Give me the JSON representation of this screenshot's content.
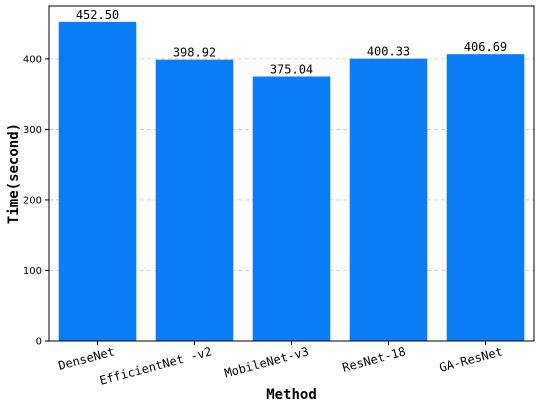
{
  "chart_data": {
    "type": "bar",
    "title": "",
    "xlabel": "Method",
    "ylabel": "Time(second)",
    "categories": [
      "DenseNet",
      "EfficientNet -v2",
      "MobileNet-v3",
      "ResNet-18",
      "GA-ResNet"
    ],
    "values": [
      452.5,
      398.92,
      375.04,
      400.33,
      406.69
    ],
    "value_labels": [
      "452.50",
      "398.92",
      "375.04",
      "400.33",
      "406.69"
    ],
    "yticks": [
      0,
      100,
      200,
      300,
      400
    ],
    "ylim": [
      0,
      475
    ],
    "grid": "horizontal dashed",
    "bar_color": "#0a7cf5"
  }
}
